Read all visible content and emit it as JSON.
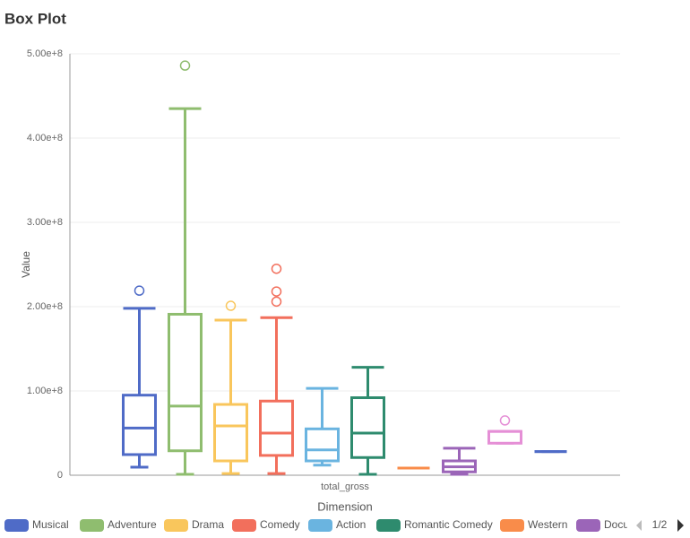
{
  "chart_data": {
    "type": "box",
    "title": "Box Plot",
    "x_label": "Dimension",
    "y_label": "Value",
    "categories": [
      "total_gross"
    ],
    "ylim": [
      0,
      500000000
    ],
    "yticks": [
      0,
      {
        "value": 100000000,
        "label": "1.00e+8"
      },
      {
        "value": 200000000,
        "label": "2.00e+8"
      },
      {
        "value": 300000000,
        "label": "3.00e+8"
      },
      {
        "value": 400000000,
        "label": "4.00e+8"
      },
      {
        "value": 500000000,
        "label": "5.00e+8"
      }
    ],
    "grid": true,
    "legend_page": "1/2",
    "series": [
      {
        "name": "Musical",
        "color": "#4f6bc7",
        "min": 9600000,
        "q1": 24500000,
        "median": 56000000,
        "q3": 95000000,
        "max": 198000000,
        "outliers": [
          219000000
        ]
      },
      {
        "name": "Adventure",
        "color": "#8fbd6f",
        "min": 1000000,
        "q1": 29000000,
        "median": 82000000,
        "q3": 191000000,
        "max": 435000000,
        "outliers": [
          486000000
        ]
      },
      {
        "name": "Drama",
        "color": "#f9c65c",
        "min": 2000000,
        "q1": 17000000,
        "median": 58500000,
        "q3": 84000000,
        "max": 184000000,
        "outliers": [
          201000000
        ]
      },
      {
        "name": "Comedy",
        "color": "#f26f5c",
        "min": 2000000,
        "q1": 23500000,
        "median": 50000000,
        "q3": 88000000,
        "max": 187000000,
        "outliers": [
          245000000,
          218000000,
          206000000
        ]
      },
      {
        "name": "Action",
        "color": "#6ab4e0",
        "min": 12000000,
        "q1": 17000000,
        "median": 30000000,
        "q3": 55000000,
        "max": 103000000,
        "outliers": []
      },
      {
        "name": "Romantic Comedy",
        "color": "#2e8b6e",
        "min": 1000000,
        "q1": 21000000,
        "median": 50000000,
        "q3": 92000000,
        "max": 128000000,
        "outliers": []
      },
      {
        "name": "Western",
        "color": "#f98c4a",
        "min": 8500000,
        "q1": 8500000,
        "median": 8500000,
        "q3": 8500000,
        "max": 8500000,
        "outliers": []
      },
      {
        "name": "Documentary",
        "color": "#9b65b8",
        "min": 1000000,
        "q1": 4000000,
        "median": 10000000,
        "q3": 17000000,
        "max": 32000000,
        "outliers": []
      },
      {
        "name": null,
        "color": "#e58fd6",
        "min": 38000000,
        "q1": 38000000,
        "median": 52000000,
        "q3": 52000000,
        "max": 52000000,
        "outliers": [
          65000000
        ]
      },
      {
        "name": null,
        "color": "#4f6bc7",
        "min": 28000000,
        "q1": 28000000,
        "median": 28000000,
        "q3": 28000000,
        "max": 28000000,
        "outliers": []
      }
    ]
  }
}
